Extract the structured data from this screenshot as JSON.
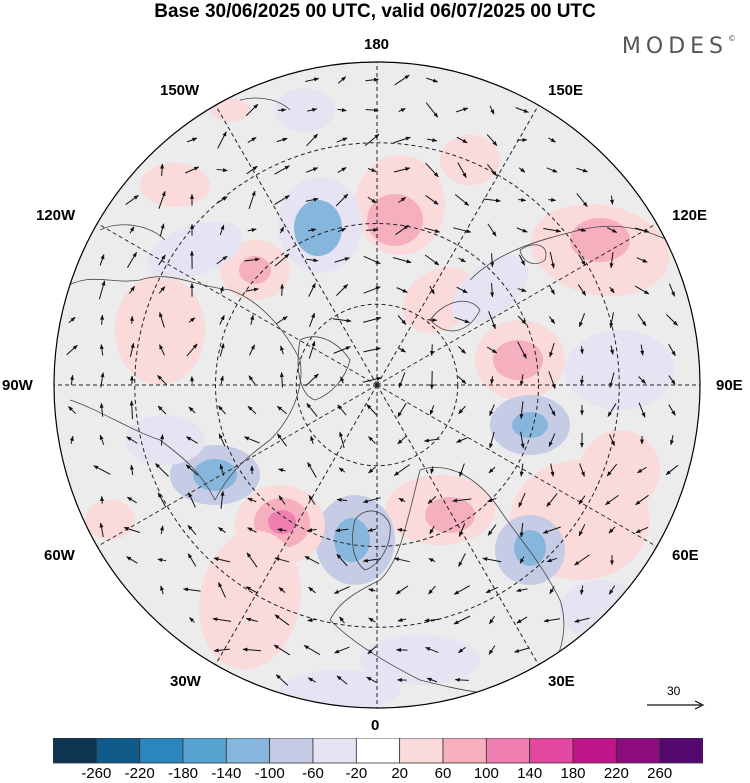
{
  "title": "Base 30/06/2025 00 UTC, valid 06/07/2025 00 UTC",
  "brand": "MODES",
  "brand_mark": "©",
  "longitude_labels": {
    "top": "180",
    "bottom": "0",
    "left": "90W",
    "right": "90E",
    "upper_left": "150W",
    "upper_right": "150E",
    "mid_upper_left": "120W",
    "mid_upper_right": "120E",
    "mid_lower_left": "60W",
    "mid_lower_right": "60E",
    "lower_left": "30W",
    "lower_right": "30E"
  },
  "reference_vector": "30",
  "colorbar": {
    "tick_labels": [
      "-260",
      "-220",
      "-180",
      "-140",
      "-100",
      "-60",
      "-20",
      "20",
      "60",
      "100",
      "140",
      "180",
      "220",
      "260"
    ],
    "colors": [
      "#0d3552",
      "#0f5a88",
      "#2a86bd",
      "#55a4d0",
      "#86b6dc",
      "#c6cbe6",
      "#e6e4f2",
      "#ffffff",
      "#fadada",
      "#f5afbf",
      "#ef7fb0",
      "#e2489f",
      "#be1689",
      "#8d0c7e",
      "#54096e"
    ]
  },
  "map_colors": {
    "ocean_land_base": "#ececec",
    "positive_light": "#fadada",
    "positive_mid": "#f5afbf",
    "positive_strong": "#ef7fb0",
    "negative_light": "#e6e4f2",
    "negative_mid": "#c6cbe6",
    "negative_strong": "#86b6dc",
    "negative_core": "#55a4d0"
  }
}
